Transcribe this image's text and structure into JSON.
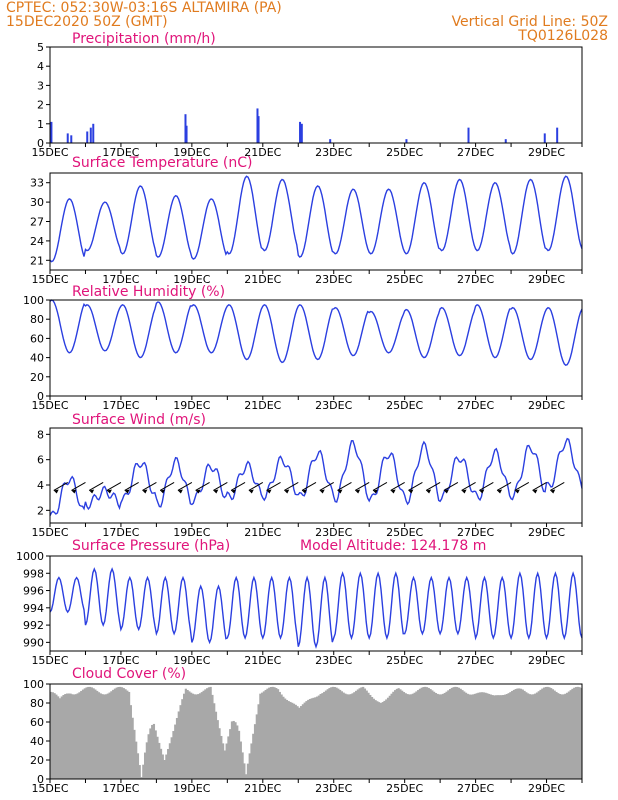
{
  "header": {
    "line1": "CPTEC:   052:30W-03:16S   ALTAMIRA (PA)",
    "line2": "15DEC2020 50Z (GMT)",
    "grid_note": "Vertical Grid Line: 50Z",
    "code": "TQ0126L028",
    "model_altitude": "Model Altitude: 124.178  m"
  },
  "colors": {
    "header": "#e07b1f",
    "title": "#e0147a",
    "series": "#2b3fe0",
    "cloud": "#a8a8a8",
    "axis": "#000000"
  },
  "x_labels": [
    "15DEC",
    "17DEC",
    "19DEC",
    "21DEC",
    "23DEC",
    "25DEC",
    "27DEC",
    "29DEC"
  ],
  "chart_data": [
    {
      "type": "bar",
      "title": "Precipitation (mm/h)",
      "ylim": [
        0,
        5
      ],
      "yticks": [
        0,
        1,
        2,
        3,
        4,
        5
      ],
      "x_days": [
        0.04,
        0.5,
        0.6,
        1.05,
        1.15,
        1.22,
        3.82,
        3.85,
        5.85,
        5.88,
        7.05,
        7.1,
        7.9,
        10.05,
        11.8,
        12.85,
        13.95,
        14.3
      ],
      "values": [
        1.1,
        0.5,
        0.4,
        0.6,
        0.8,
        1.0,
        1.5,
        0.9,
        1.8,
        1.4,
        1.1,
        1.0,
        0.2,
        0.2,
        0.8,
        0.2,
        0.5,
        0.8
      ],
      "grid": false
    },
    {
      "type": "line",
      "title": "Surface Temperature (nC)",
      "ylim": [
        19.5,
        34.5
      ],
      "yticks": [
        21,
        24,
        27,
        30,
        33
      ],
      "days": 15,
      "daily_min": [
        20.8,
        22.5,
        22.0,
        21.5,
        21.2,
        22.0,
        22.5,
        21.5,
        22.0,
        22.0,
        22.0,
        22.5,
        22.5,
        22.0,
        22.5
      ],
      "daily_max": [
        30.5,
        30.0,
        32.5,
        31.0,
        30.5,
        34.0,
        33.5,
        32.5,
        32.0,
        32.0,
        33.0,
        33.5,
        33.0,
        33.5,
        34.0
      ],
      "grid": false
    },
    {
      "type": "line",
      "title": "Relative Humidity (%)",
      "ylim": [
        0,
        100
      ],
      "yticks": [
        0,
        20,
        40,
        60,
        80,
        100
      ],
      "days": 15,
      "daily_min": [
        45,
        47,
        40,
        45,
        45,
        38,
        35,
        38,
        42,
        45,
        40,
        42,
        40,
        38,
        32
      ],
      "daily_max": [
        100,
        95,
        95,
        98,
        95,
        95,
        95,
        95,
        92,
        88,
        90,
        92,
        95,
        92,
        92
      ],
      "grid": false
    },
    {
      "type": "line",
      "title": "Surface Wind (m/s)",
      "ylim": [
        1,
        8.5
      ],
      "yticks": [
        2,
        4,
        6,
        8
      ],
      "days": 15,
      "daily_min": [
        1.5,
        2.5,
        2.8,
        2.5,
        2.8,
        3.0,
        3.2,
        3.0,
        3.0,
        2.8,
        2.8,
        3.0,
        3.0,
        3.2,
        3.8
      ],
      "daily_max": [
        4.5,
        3.5,
        5.8,
        5.8,
        5.5,
        5.5,
        6.0,
        6.5,
        7.2,
        6.5,
        7.0,
        6.2,
        6.5,
        7.0,
        7.4
      ],
      "grid": false
    },
    {
      "type": "line",
      "title": "Surface Pressure (hPa)",
      "ylim": [
        989,
        1000
      ],
      "yticks": [
        990,
        992,
        994,
        996,
        998,
        1000
      ],
      "days": 15,
      "daily_min": [
        993.5,
        992.0,
        991.5,
        991.0,
        990.0,
        990.5,
        990.5,
        989.5,
        990.5,
        990.5,
        991.0,
        991.0,
        990.5,
        990.5,
        990.5
      ],
      "daily_max": [
        997.5,
        998.5,
        997.5,
        997.5,
        996.5,
        997.5,
        997.5,
        997.5,
        998.0,
        998.0,
        997.5,
        997.5,
        997.5,
        998.0,
        998.0
      ],
      "grid": false
    },
    {
      "type": "area",
      "title": "Cloud Cover (%)",
      "ylim": [
        0,
        100
      ],
      "yticks": [
        0,
        20,
        40,
        60,
        80,
        100
      ],
      "days": 15,
      "baseline": 93,
      "dips": [
        {
          "day": 0.25,
          "width": 0.3,
          "min": 85
        },
        {
          "day": 2.55,
          "width": 0.35,
          "min": 2
        },
        {
          "day": 3.2,
          "width": 0.6,
          "min": 20
        },
        {
          "day": 4.9,
          "width": 0.4,
          "min": 30
        },
        {
          "day": 5.5,
          "width": 0.4,
          "min": 5
        },
        {
          "day": 7.0,
          "width": 0.6,
          "min": 75
        },
        {
          "day": 9.3,
          "width": 0.5,
          "min": 80
        },
        {
          "day": 12.5,
          "width": 0.8,
          "min": 88
        }
      ],
      "grid": false
    }
  ]
}
